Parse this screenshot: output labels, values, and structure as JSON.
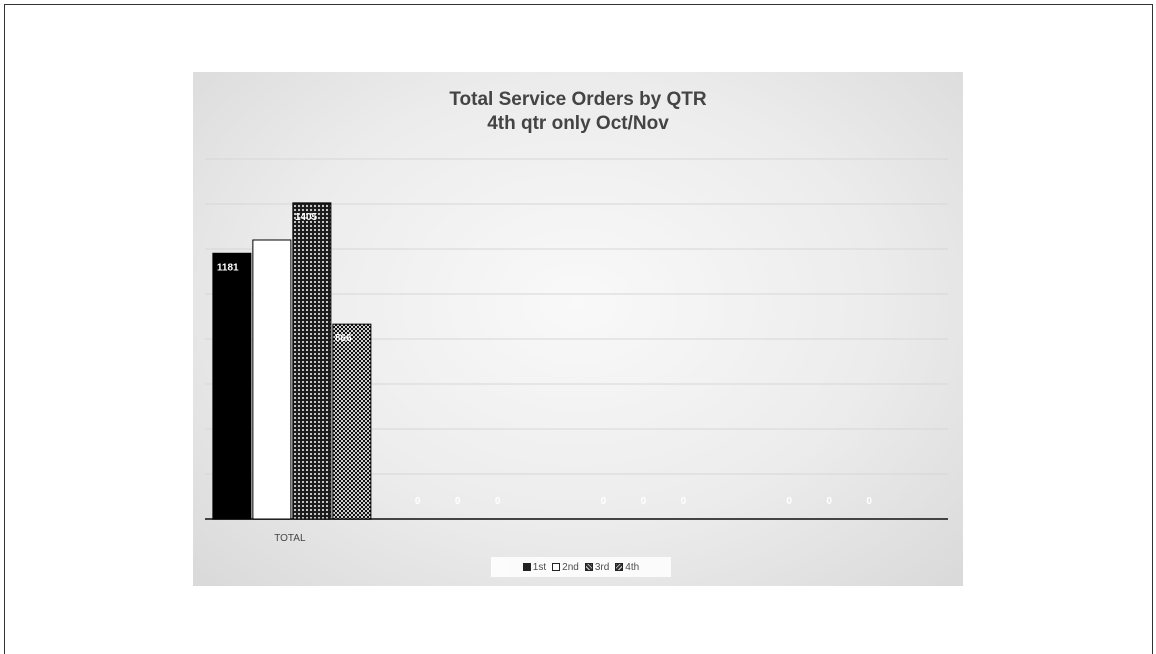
{
  "chart_data": {
    "type": "bar",
    "title": "Total Service Orders by QTR",
    "subtitle": "4th qtr only Oct/Nov",
    "categories": [
      "TOTAL",
      "",
      "",
      ""
    ],
    "series": [
      {
        "name": "1st",
        "values": [
          1181,
          0,
          0,
          0
        ],
        "label_values": [
          "1181",
          "0",
          "0",
          "0"
        ],
        "color": "#000000",
        "pattern": "solid"
      },
      {
        "name": "2nd",
        "values": [
          1240,
          0,
          0,
          0
        ],
        "label_values": [
          "",
          "0",
          "0",
          "0"
        ],
        "color": "#ffffff",
        "pattern": "solid"
      },
      {
        "name": "3rd",
        "values": [
          1405,
          0,
          0,
          0
        ],
        "label_values": [
          "1405",
          "0",
          "0",
          "0"
        ],
        "color": "#1a1a1a",
        "pattern": "dots"
      },
      {
        "name": "4th",
        "values": [
          866,
          0,
          0,
          0
        ],
        "label_values": [
          "866",
          "",
          "",
          ""
        ],
        "color": "#1a1a1a",
        "pattern": "checker"
      }
    ],
    "xlabel": "",
    "ylabel": "",
    "ylim": [
      0,
      1600
    ],
    "grid": true,
    "legend": "bottom"
  }
}
